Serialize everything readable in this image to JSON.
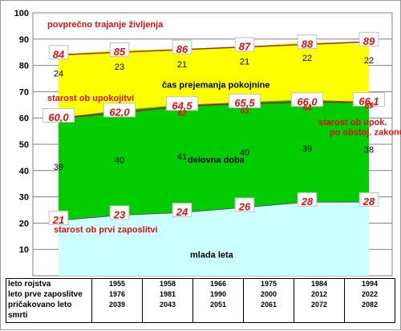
{
  "chart_data": {
    "type": "area",
    "ylim": [
      0,
      100
    ],
    "yticks": [
      10,
      20,
      30,
      40,
      50,
      60,
      70,
      80,
      90,
      100
    ],
    "columns": [
      "1955",
      "1958",
      "1966",
      "1975",
      "1984",
      "1994"
    ],
    "series": [
      {
        "name": "mlada leta",
        "color": "#ccffff",
        "values": [
          21,
          23,
          24,
          26,
          28,
          28
        ]
      },
      {
        "name": "delovna doba",
        "color": "#00cc00",
        "values": [
          39,
          40,
          41,
          40,
          39,
          38
        ]
      },
      {
        "name": "čas prejemanja pokojnine",
        "color": "#ffff00",
        "values": [
          24,
          23,
          21,
          21,
          22,
          22
        ]
      }
    ],
    "lines": {
      "povprečno trajanje življenja": [
        84,
        85,
        86,
        87,
        88,
        89
      ],
      "starost ob upokojitvi": [
        60.0,
        62.0,
        64.5,
        65.5,
        66.0,
        66.1
      ],
      "starost ob upok. po obstoj. zakonu": [
        null,
        null,
        62,
        63,
        64,
        65
      ],
      "starost ob prvi zaposlitvi": [
        21,
        23,
        24,
        26,
        28,
        28
      ]
    },
    "labels": {
      "life": [
        "84",
        "85",
        "86",
        "87",
        "88",
        "89"
      ],
      "retire": [
        "60,0",
        "62,0",
        "64,5",
        "65,5",
        "66,0",
        "66,1"
      ],
      "law": [
        "62",
        "63",
        "64",
        "65"
      ],
      "firstjob": [
        "21",
        "23",
        "24",
        "26",
        "28",
        "28"
      ],
      "pension_years": [
        "24",
        "23",
        "21",
        "21",
        "22",
        "22"
      ],
      "work_years": [
        "39",
        "40",
        "41",
        "40",
        "39",
        "38"
      ]
    },
    "annotations": {
      "life": "povprečno trajanje življenja",
      "retire": "starost ob upokojitvi",
      "law_line1": "starost ob upok.",
      "law_line2": "po obstoj. zakonu",
      "firstjob": "starost ob prvi zaposlitvi",
      "young": "mlada leta",
      "work": "delovna doba",
      "pension": "čas prejemanja pokojnine"
    },
    "colors": {
      "young": "#ccffff",
      "work": "#00cc00",
      "pension": "#ffff00",
      "life_line": "#993300",
      "retire_line": "#cc0000",
      "label_text": "#dd1111"
    }
  },
  "table": {
    "row_labels": [
      "leto rojstva",
      "leto prve zaposlitve",
      "pričakovano leto smrti"
    ],
    "columns": [
      {
        "birth": "1955",
        "first_job": "1976",
        "death": "2039"
      },
      {
        "birth": "1958",
        "first_job": "1981",
        "death": "2043"
      },
      {
        "birth": "1966",
        "first_job": "1990",
        "death": "2051"
      },
      {
        "birth": "1975",
        "first_job": "2000",
        "death": "2061"
      },
      {
        "birth": "1984",
        "first_job": "2012",
        "death": "2072"
      },
      {
        "birth": "1994",
        "first_job": "2022",
        "death": "2082"
      }
    ]
  }
}
